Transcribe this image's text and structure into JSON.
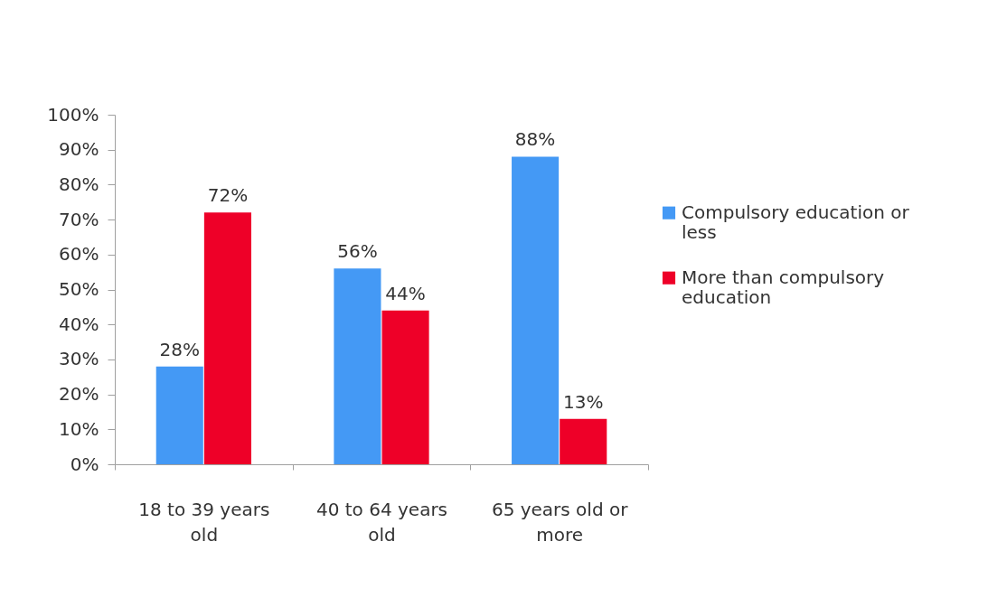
{
  "chart_data": {
    "type": "bar",
    "categories": [
      "18 to 39 years old",
      "40 to 64 years old",
      "65 years old or more"
    ],
    "series": [
      {
        "name": "Compulsory education or less",
        "color": "#4499f5",
        "values": [
          28,
          56,
          88
        ],
        "value_labels": [
          "28%",
          "56%",
          "88%"
        ]
      },
      {
        "name": "More than compulsory education",
        "color": "#ee0028",
        "values": [
          72,
          44,
          13
        ],
        "value_labels": [
          "72%",
          "44%",
          "13%"
        ]
      }
    ],
    "ylim": [
      0,
      100
    ],
    "yticks": [
      {
        "value": 0,
        "label": "0%"
      },
      {
        "value": 10,
        "label": "10%"
      },
      {
        "value": 20,
        "label": "20%"
      },
      {
        "value": 30,
        "label": "30%"
      },
      {
        "value": 40,
        "label": "40%"
      },
      {
        "value": 50,
        "label": "50%"
      },
      {
        "value": 60,
        "label": "60%"
      },
      {
        "value": 70,
        "label": "70%"
      },
      {
        "value": 80,
        "label": "80%"
      },
      {
        "value": 90,
        "label": "90%"
      },
      {
        "value": 100,
        "label": "100%"
      }
    ],
    "legend": "right",
    "grid": false
  }
}
